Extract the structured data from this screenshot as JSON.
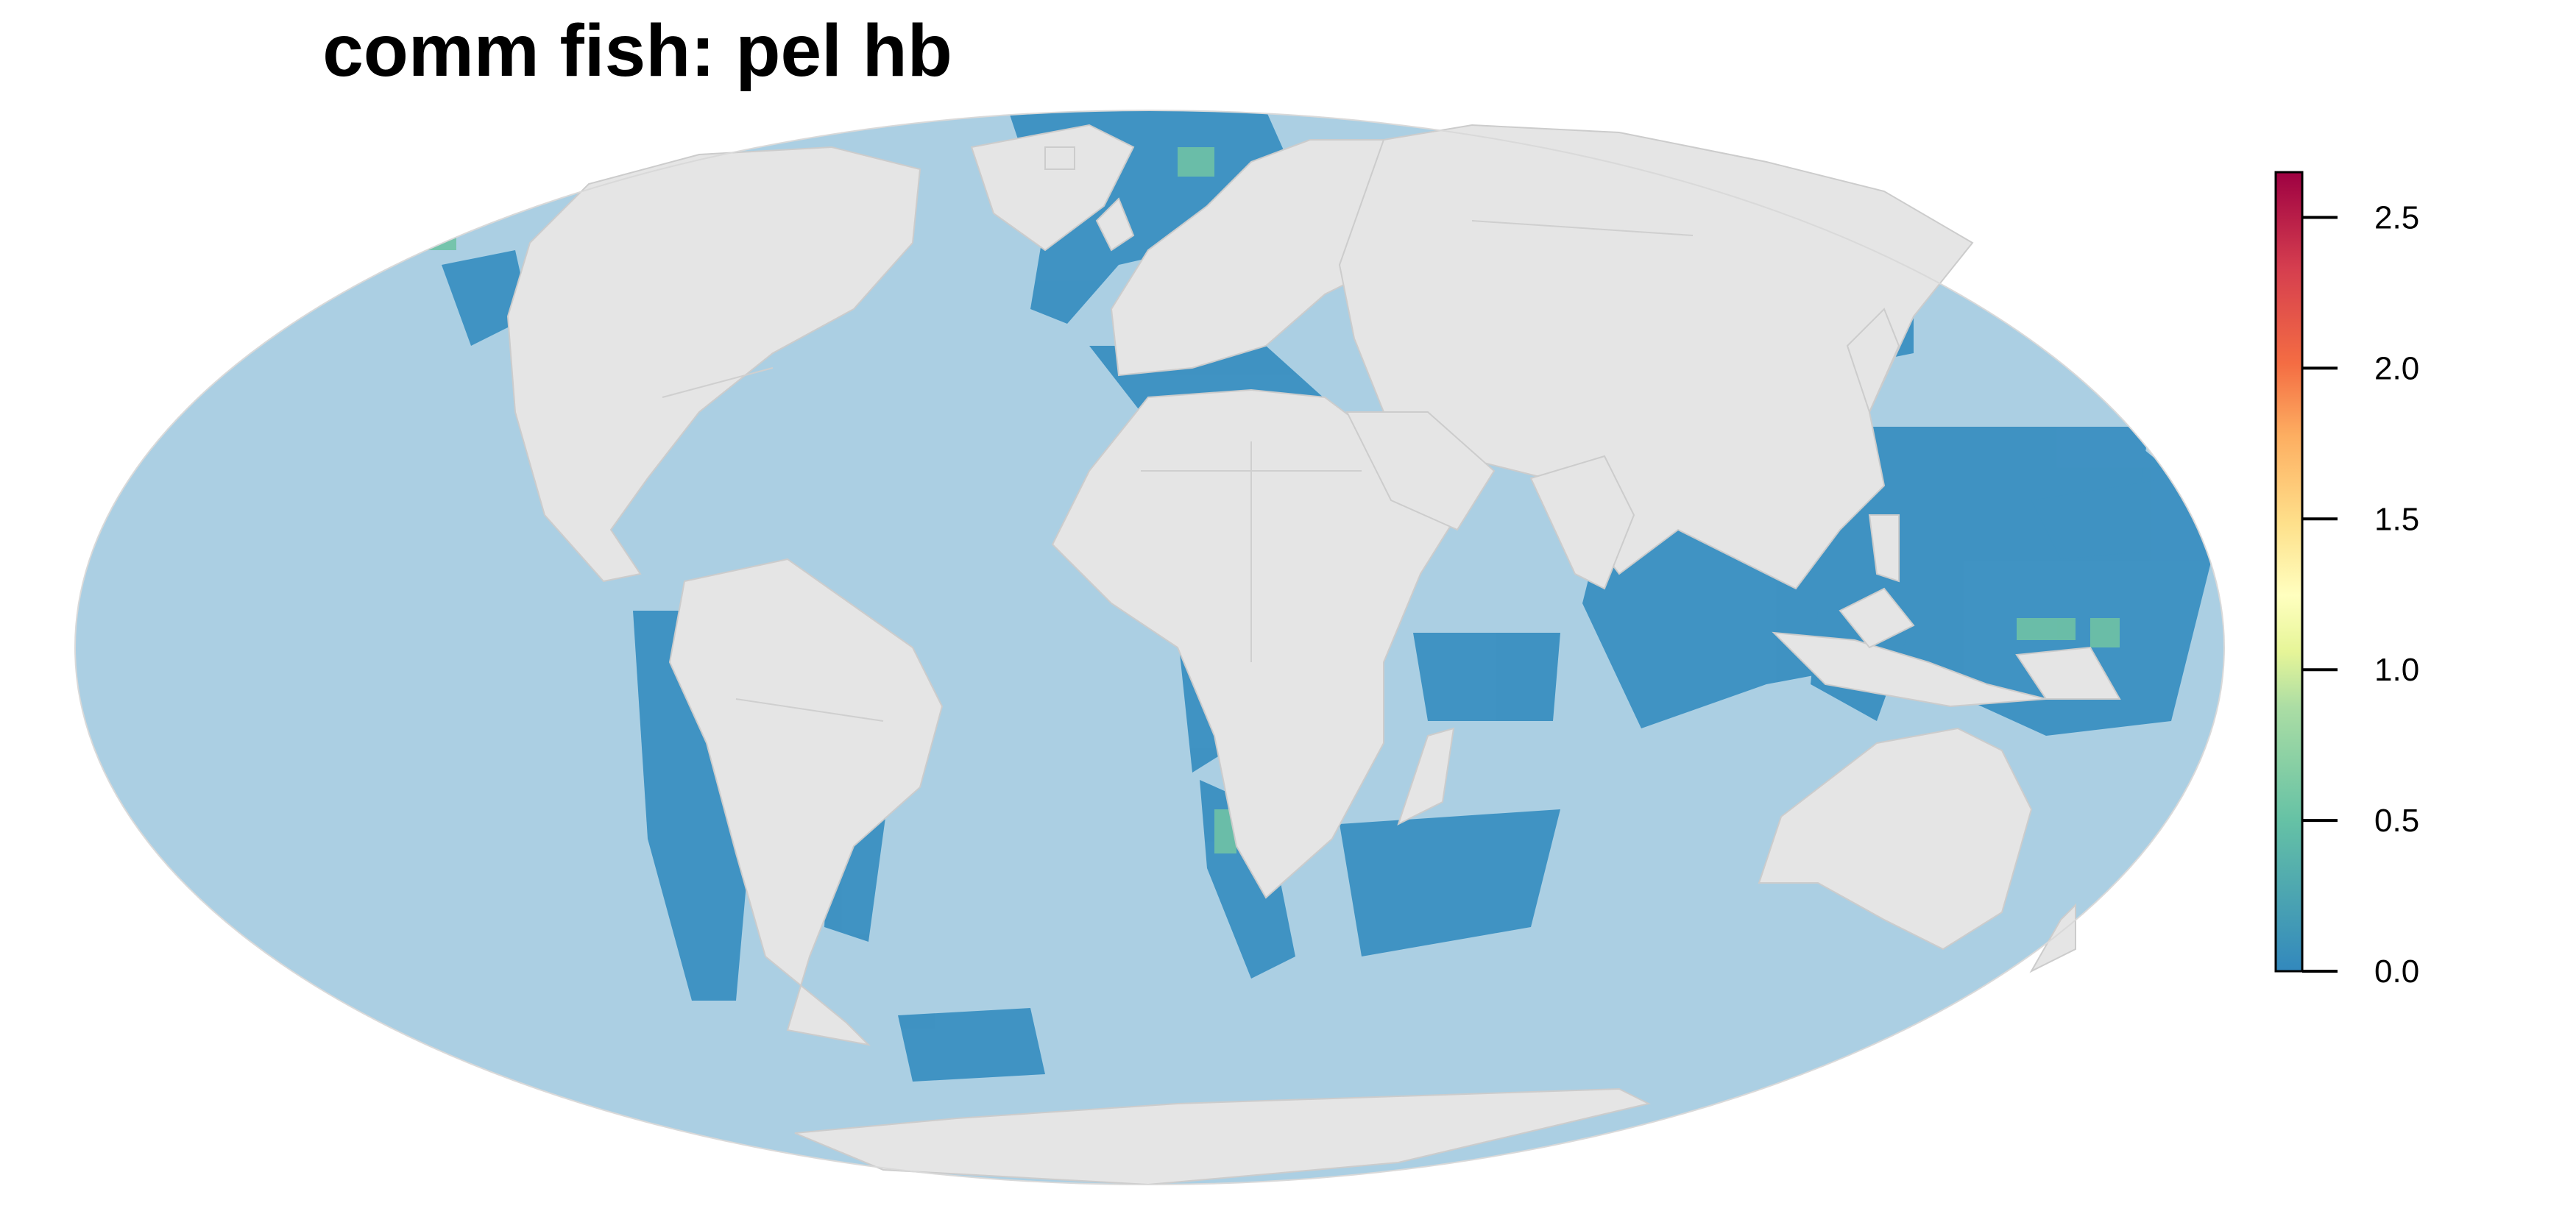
{
  "title": "comm fish: pel hb",
  "map": {
    "projection": "mollweide",
    "ocean_color": "#abcfe3",
    "land_color": "#e5e5e5",
    "border_color": "#cccccc"
  },
  "legend": {
    "placement": "right",
    "min": 0.0,
    "max": 2.65,
    "ticks": [
      {
        "value": 0.0,
        "label": "0.0"
      },
      {
        "value": 0.5,
        "label": "0.5"
      },
      {
        "value": 1.0,
        "label": "1.0"
      },
      {
        "value": 1.5,
        "label": "1.5"
      },
      {
        "value": 2.0,
        "label": "2.0"
      },
      {
        "value": 2.5,
        "label": "2.5"
      }
    ],
    "colors": [
      "#3288bd",
      "#66c2a5",
      "#abdda4",
      "#e6f598",
      "#ffffbf",
      "#fee08b",
      "#fdae61",
      "#f46d43",
      "#d53e4f",
      "#9e0142"
    ]
  }
}
